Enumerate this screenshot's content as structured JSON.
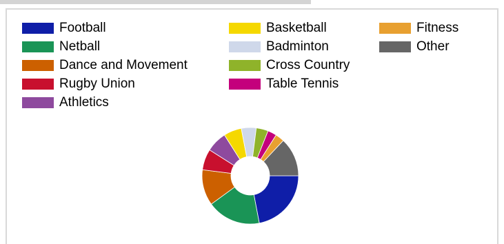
{
  "chart_data": {
    "type": "pie",
    "variant": "donut",
    "title": "",
    "legend_placement": "top",
    "series": [
      {
        "name": "Football",
        "value": 22,
        "color": "#0f1ea8"
      },
      {
        "name": "Netball",
        "value": 18,
        "color": "#1a9456"
      },
      {
        "name": "Dance and Movement",
        "value": 12,
        "color": "#cc6000"
      },
      {
        "name": "Rugby Union",
        "value": 7,
        "color": "#c8102e"
      },
      {
        "name": "Athletics",
        "value": 7,
        "color": "#8e4a9e"
      },
      {
        "name": "Basketball",
        "value": 6,
        "color": "#f5d800"
      },
      {
        "name": "Badminton",
        "value": 5,
        "color": "#cfd8ea"
      },
      {
        "name": "Cross Country",
        "value": 4,
        "color": "#8fb32a"
      },
      {
        "name": "Table Tennis",
        "value": 3,
        "color": "#c4007c"
      },
      {
        "name": "Fitness",
        "value": 3,
        "color": "#e8a030"
      },
      {
        "name": "Other",
        "value": 13,
        "color": "#666666"
      }
    ]
  }
}
